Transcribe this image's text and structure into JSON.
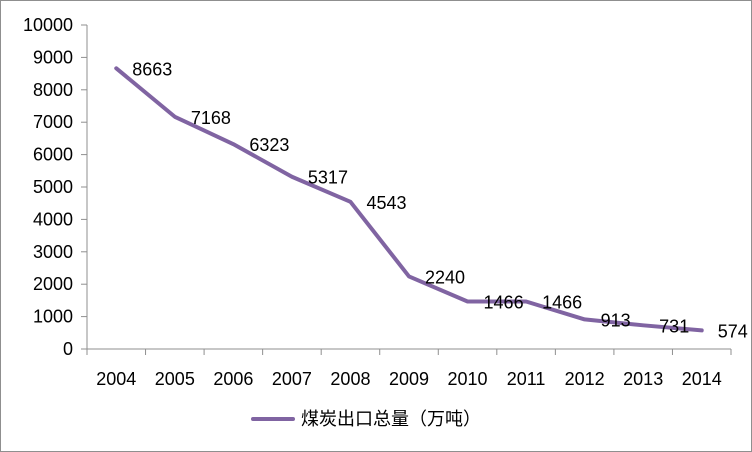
{
  "chart_data": {
    "type": "line",
    "categories": [
      "2004",
      "2005",
      "2006",
      "2007",
      "2008",
      "2009",
      "2010",
      "2011",
      "2012",
      "2013",
      "2014"
    ],
    "series": [
      {
        "name": "煤炭出口总量（万吨）",
        "values": [
          8663,
          7168,
          6323,
          5317,
          4543,
          2240,
          1466,
          1466,
          913,
          731,
          574
        ],
        "color": "#8064a2"
      }
    ],
    "ylim": [
      0,
      10000
    ],
    "y_ticks": [
      0,
      1000,
      2000,
      3000,
      4000,
      5000,
      6000,
      7000,
      8000,
      9000,
      10000
    ],
    "legend_position": "bottom-center",
    "grid": false,
    "data_labels": [
      "8663",
      "7168",
      "6323",
      "5317",
      "4543",
      "2240",
      "1466",
      "1466",
      "913",
      "731",
      "574"
    ]
  }
}
